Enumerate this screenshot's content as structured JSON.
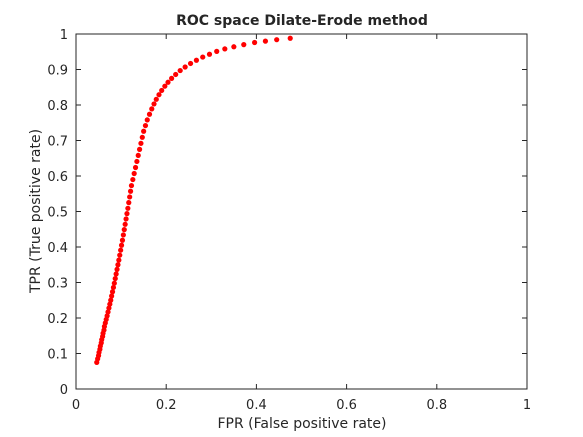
{
  "chart_data": {
    "type": "scatter",
    "title": "ROC space Dilate-Erode method",
    "xlabel": "FPR (False positive rate)",
    "ylabel": "TPR (True positive rate)",
    "xlim": [
      0,
      1
    ],
    "ylim": [
      0,
      1
    ],
    "xticks": [
      "0",
      "0.2",
      "0.4",
      "0.6",
      "0.8",
      "1"
    ],
    "yticks": [
      "0",
      "0.1",
      "0.2",
      "0.3",
      "0.4",
      "0.5",
      "0.6",
      "0.7",
      "0.8",
      "0.9",
      "1"
    ],
    "grid": false,
    "marker_color": "#ff0000",
    "points": [
      [
        0.046,
        0.075
      ],
      [
        0.048,
        0.085
      ],
      [
        0.05,
        0.094
      ],
      [
        0.051,
        0.103
      ],
      [
        0.053,
        0.112
      ],
      [
        0.054,
        0.121
      ],
      [
        0.056,
        0.13
      ],
      [
        0.057,
        0.139
      ],
      [
        0.059,
        0.148
      ],
      [
        0.06,
        0.157
      ],
      [
        0.062,
        0.166
      ],
      [
        0.063,
        0.176
      ],
      [
        0.065,
        0.186
      ],
      [
        0.067,
        0.196
      ],
      [
        0.069,
        0.206
      ],
      [
        0.071,
        0.217
      ],
      [
        0.073,
        0.228
      ],
      [
        0.075,
        0.239
      ],
      [
        0.077,
        0.25
      ],
      [
        0.079,
        0.262
      ],
      [
        0.081,
        0.274
      ],
      [
        0.083,
        0.286
      ],
      [
        0.085,
        0.298
      ],
      [
        0.087,
        0.311
      ],
      [
        0.089,
        0.324
      ],
      [
        0.091,
        0.337
      ],
      [
        0.093,
        0.35
      ],
      [
        0.095,
        0.363
      ],
      [
        0.097,
        0.377
      ],
      [
        0.099,
        0.391
      ],
      [
        0.101,
        0.405
      ],
      [
        0.103,
        0.419
      ],
      [
        0.105,
        0.434
      ],
      [
        0.107,
        0.449
      ],
      [
        0.109,
        0.464
      ],
      [
        0.111,
        0.479
      ],
      [
        0.113,
        0.494
      ],
      [
        0.115,
        0.509
      ],
      [
        0.117,
        0.525
      ],
      [
        0.119,
        0.541
      ],
      [
        0.121,
        0.557
      ],
      [
        0.123,
        0.573
      ],
      [
        0.126,
        0.59
      ],
      [
        0.129,
        0.607
      ],
      [
        0.132,
        0.624
      ],
      [
        0.135,
        0.641
      ],
      [
        0.138,
        0.658
      ],
      [
        0.141,
        0.675
      ],
      [
        0.144,
        0.692
      ],
      [
        0.147,
        0.709
      ],
      [
        0.15,
        0.726
      ],
      [
        0.154,
        0.742
      ],
      [
        0.158,
        0.758
      ],
      [
        0.163,
        0.774
      ],
      [
        0.168,
        0.789
      ],
      [
        0.173,
        0.803
      ],
      [
        0.178,
        0.816
      ],
      [
        0.184,
        0.829
      ],
      [
        0.19,
        0.841
      ],
      [
        0.197,
        0.853
      ],
      [
        0.204,
        0.864
      ],
      [
        0.212,
        0.875
      ],
      [
        0.221,
        0.886
      ],
      [
        0.231,
        0.897
      ],
      [
        0.242,
        0.907
      ],
      [
        0.254,
        0.917
      ],
      [
        0.267,
        0.926
      ],
      [
        0.281,
        0.935
      ],
      [
        0.296,
        0.943
      ],
      [
        0.312,
        0.951
      ],
      [
        0.33,
        0.958
      ],
      [
        0.35,
        0.964
      ],
      [
        0.372,
        0.97
      ],
      [
        0.396,
        0.976
      ],
      [
        0.42,
        0.98
      ],
      [
        0.445,
        0.984
      ],
      [
        0.475,
        0.988
      ]
    ]
  }
}
